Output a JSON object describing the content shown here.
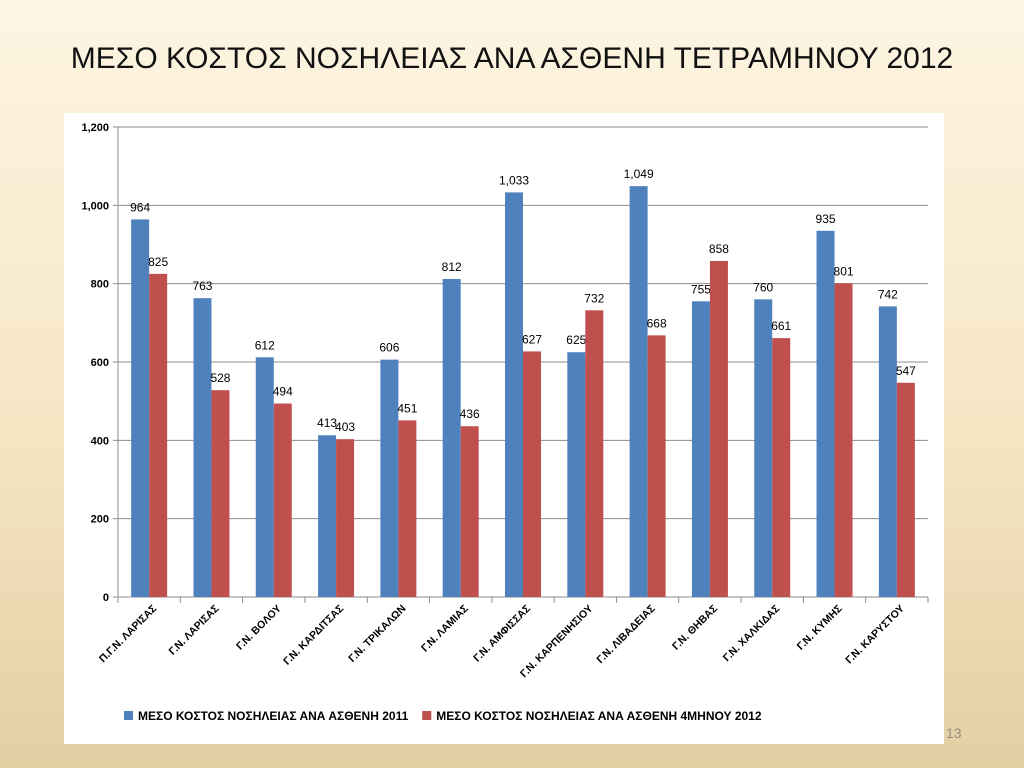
{
  "slide": {
    "title": "ΜΕΣΟ ΚΟΣΤΟΣ ΝΟΣΗΛΕΙΑΣ ΑΝΑ ΑΣΘΕΝΗ ΤΕΤΡΑΜΗΝΟΥ 2012",
    "page_number": "13"
  },
  "chart_data": {
    "type": "bar",
    "title": "",
    "xlabel": "",
    "ylabel": "",
    "ylim": [
      0,
      1200
    ],
    "yticks": [
      0,
      200,
      400,
      600,
      800,
      1000,
      1200
    ],
    "ytick_labels": [
      "0",
      "200",
      "400",
      "600",
      "800",
      "1,000",
      "1,200"
    ],
    "grid": true,
    "legend_position": "bottom",
    "categories": [
      "Π.Γ.Ν. ΛΑΡΙΣΑΣ",
      "Γ.Ν. ΛΑΡΙΣΑΣ",
      "Γ.Ν. ΒΟΛΟΥ",
      "Γ.Ν. ΚΑΡΔΙΤΣΑΣ",
      "Γ.Ν. ΤΡΙΚΑΛΩΝ",
      "Γ.Ν. ΛΑΜΙΑΣ",
      "Γ.Ν. ΑΜΦΙΣΣΑΣ",
      "Γ.Ν. ΚΑΡΠΕΝΗΣΙΟΥ",
      "Γ.Ν. ΛΙΒΑΔΕΙΑΣ",
      "Γ.Ν. ΘΗΒΑΣ",
      "Γ.Ν. ΧΑΛΚΙΔΑΣ",
      "Γ.Ν. ΚΥΜΗΣ",
      "Γ.Ν. ΚΑΡΥΣΤΟΥ"
    ],
    "series": [
      {
        "name": "ΜΕΣΟ ΚΟΣΤΟΣ ΝΟΣΗΛΕΙΑΣ ΑΝΑ ΑΣΘΕΝΗ 2011",
        "color": "#4f81bd",
        "values": [
          964,
          763,
          612,
          413,
          606,
          812,
          1033,
          625,
          1049,
          755,
          760,
          935,
          742
        ],
        "labels": [
          "964",
          "763",
          "612",
          "413",
          "606",
          "812",
          "1,033",
          "625",
          "1,049",
          "755",
          "760",
          "935",
          "742"
        ]
      },
      {
        "name": "ΜΕΣΟ ΚΟΣΤΟΣ ΝΟΣΗΛΕΙΑΣ ΑΝΑ ΑΣΘΕΝΗ 4ΜΗΝΟΥ 2012",
        "color": "#c0504d",
        "values": [
          825,
          528,
          494,
          403,
          451,
          436,
          627,
          732,
          668,
          858,
          661,
          801,
          547
        ],
        "labels": [
          "825",
          "528",
          "494",
          "403",
          "451",
          "436",
          "627",
          "732",
          "668",
          "858",
          "661",
          "801",
          "547"
        ]
      }
    ]
  }
}
